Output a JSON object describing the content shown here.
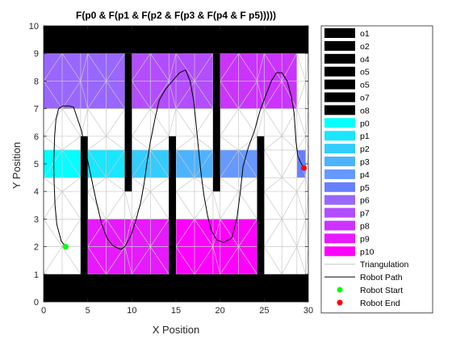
{
  "chart_data": {
    "type": "line",
    "title": "F(p0 & F(p1 & F(p2 & F(p3 & F(p4 & F p5)))))",
    "xlabel": "X Position",
    "ylabel": "Y Position",
    "xlim": [
      0,
      30
    ],
    "ylim": [
      0,
      10
    ],
    "xticks": [
      "0",
      "5",
      "10",
      "15",
      "20",
      "25",
      "30"
    ],
    "yticks": [
      "0",
      "1",
      "2",
      "3",
      "4",
      "5",
      "6",
      "7",
      "8",
      "9",
      "10"
    ],
    "grid": false,
    "legend_position": "outside-right",
    "obstacles": [
      {
        "name": "o1",
        "x": [
          0,
          30
        ],
        "y": [
          9,
          10
        ],
        "color": "#000000"
      },
      {
        "name": "o2",
        "x": [
          0,
          30
        ],
        "y": [
          0,
          1
        ],
        "color": "#000000"
      },
      {
        "name": "o4",
        "x": [
          4.2,
          5.0
        ],
        "y": [
          1,
          6
        ],
        "color": "#000000"
      },
      {
        "name": "o5",
        "x": [
          9.2,
          10.0
        ],
        "y": [
          4,
          9
        ],
        "color": "#000000"
      },
      {
        "name": "o5",
        "x": [
          14.2,
          15.0
        ],
        "y": [
          1,
          6
        ],
        "color": "#000000"
      },
      {
        "name": "o7",
        "x": [
          19.2,
          20.0
        ],
        "y": [
          4,
          9
        ],
        "color": "#000000"
      },
      {
        "name": "o8",
        "x": [
          24.2,
          25.0
        ],
        "y": [
          1,
          6
        ],
        "color": "#000000"
      }
    ],
    "regions": [
      {
        "name": "p0",
        "x": [
          0,
          4.2
        ],
        "y": [
          4.5,
          5.5
        ],
        "color": "#00ffff"
      },
      {
        "name": "p1",
        "x": [
          5.0,
          9.2
        ],
        "y": [
          4.5,
          5.5
        ],
        "color": "#19e6ff"
      },
      {
        "name": "p2",
        "x": [
          10.0,
          14.2
        ],
        "y": [
          4.5,
          5.5
        ],
        "color": "#33ccff"
      },
      {
        "name": "p3",
        "x": [
          15.0,
          19.2
        ],
        "y": [
          4.5,
          5.5
        ],
        "color": "#4db3ff"
      },
      {
        "name": "p4",
        "x": [
          20.0,
          24.2
        ],
        "y": [
          4.5,
          5.5
        ],
        "color": "#6699ff"
      },
      {
        "name": "p5",
        "x": [
          28.7,
          29.7
        ],
        "y": [
          4.5,
          5.5
        ],
        "color": "#6680ff"
      },
      {
        "name": "p6",
        "x": [
          0,
          9.2
        ],
        "y": [
          7,
          9
        ],
        "color": "#9966ff"
      },
      {
        "name": "p7",
        "x": [
          10.0,
          19.2
        ],
        "y": [
          7,
          9
        ],
        "color": "#b34dff"
      },
      {
        "name": "p8",
        "x": [
          20.0,
          28.7
        ],
        "y": [
          7,
          9
        ],
        "color": "#cc33ff"
      },
      {
        "name": "p9",
        "x": [
          5.0,
          14.2
        ],
        "y": [
          1,
          3
        ],
        "color": "#e619ff"
      },
      {
        "name": "p10",
        "x": [
          15.0,
          24.2
        ],
        "y": [
          1,
          3
        ],
        "color": "#ff00ff"
      }
    ],
    "robot_path": {
      "x": [
        2.5,
        2.0,
        1.5,
        1.3,
        1.2,
        1.15,
        1.25,
        1.4,
        1.7,
        2.2,
        2.9,
        3.4,
        4.3,
        5.2,
        6.0,
        6.6,
        7.2,
        7.8,
        8.4,
        8.8,
        9.2,
        9.9,
        10.5,
        11.0,
        11.4,
        11.7,
        12.1,
        12.6,
        13.1,
        13.8,
        14.6,
        15.4,
        16.1,
        16.6,
        17.0,
        17.3,
        17.6,
        17.9,
        18.2,
        18.6,
        19.0,
        19.6,
        20.4,
        21.3,
        21.9,
        22.3,
        22.6,
        23.2,
        23.9,
        24.5,
        25.2,
        25.8,
        26.4,
        27.0,
        27.6,
        28.1,
        28.4,
        28.5,
        28.6,
        28.8,
        29.2,
        29.5
      ],
      "y": [
        2.0,
        2.2,
        2.8,
        3.5,
        4.3,
        5.0,
        6.0,
        6.6,
        7.0,
        7.1,
        7.1,
        7.05,
        6.2,
        4.8,
        3.6,
        2.8,
        2.3,
        2.05,
        1.95,
        1.9,
        2.0,
        2.4,
        3.0,
        3.6,
        4.3,
        5.0,
        5.8,
        6.6,
        7.3,
        7.7,
        8.0,
        8.3,
        8.4,
        8.0,
        7.3,
        6.4,
        5.4,
        4.5,
        3.8,
        3.1,
        2.6,
        2.25,
        2.15,
        2.3,
        3.0,
        4.0,
        4.9,
        5.6,
        6.2,
        6.9,
        7.5,
        8.0,
        8.3,
        8.3,
        8.0,
        7.4,
        6.8,
        6.3,
        5.8,
        5.3,
        5.0,
        4.85
      ]
    },
    "robot_start": {
      "x": 2.5,
      "y": 2.0,
      "color": "#00ff00"
    },
    "robot_end": {
      "x": 29.5,
      "y": 4.85,
      "color": "#ff0000"
    },
    "legend": [
      {
        "label": "o1",
        "kind": "patch",
        "color": "#000000"
      },
      {
        "label": "o2",
        "kind": "patch",
        "color": "#000000"
      },
      {
        "label": "o4",
        "kind": "patch",
        "color": "#000000"
      },
      {
        "label": "o5",
        "kind": "patch",
        "color": "#000000"
      },
      {
        "label": "o5",
        "kind": "patch",
        "color": "#000000"
      },
      {
        "label": "o7",
        "kind": "patch",
        "color": "#000000"
      },
      {
        "label": "o8",
        "kind": "patch",
        "color": "#000000"
      },
      {
        "label": "p0",
        "kind": "patch",
        "color": "#00ffff"
      },
      {
        "label": "p1",
        "kind": "patch",
        "color": "#19e6ff"
      },
      {
        "label": "p2",
        "kind": "patch",
        "color": "#33ccff"
      },
      {
        "label": "p3",
        "kind": "patch",
        "color": "#4db3ff"
      },
      {
        "label": "p4",
        "kind": "patch",
        "color": "#6699ff"
      },
      {
        "label": "p5",
        "kind": "patch",
        "color": "#6680ff"
      },
      {
        "label": "p6",
        "kind": "patch",
        "color": "#9966ff"
      },
      {
        "label": "p7",
        "kind": "patch",
        "color": "#b34dff"
      },
      {
        "label": "p8",
        "kind": "patch",
        "color": "#cc33ff"
      },
      {
        "label": "p9",
        "kind": "patch",
        "color": "#e619ff"
      },
      {
        "label": "p10",
        "kind": "patch",
        "color": "#ff00ff"
      },
      {
        "label": "Triangulation",
        "kind": "line",
        "color": "#c8c8c8"
      },
      {
        "label": "Robot Path",
        "kind": "line",
        "color": "#000000"
      },
      {
        "label": "Robot Start",
        "kind": "marker",
        "color": "#00ff00"
      },
      {
        "label": "Robot End",
        "kind": "marker",
        "color": "#ff0000"
      }
    ]
  }
}
